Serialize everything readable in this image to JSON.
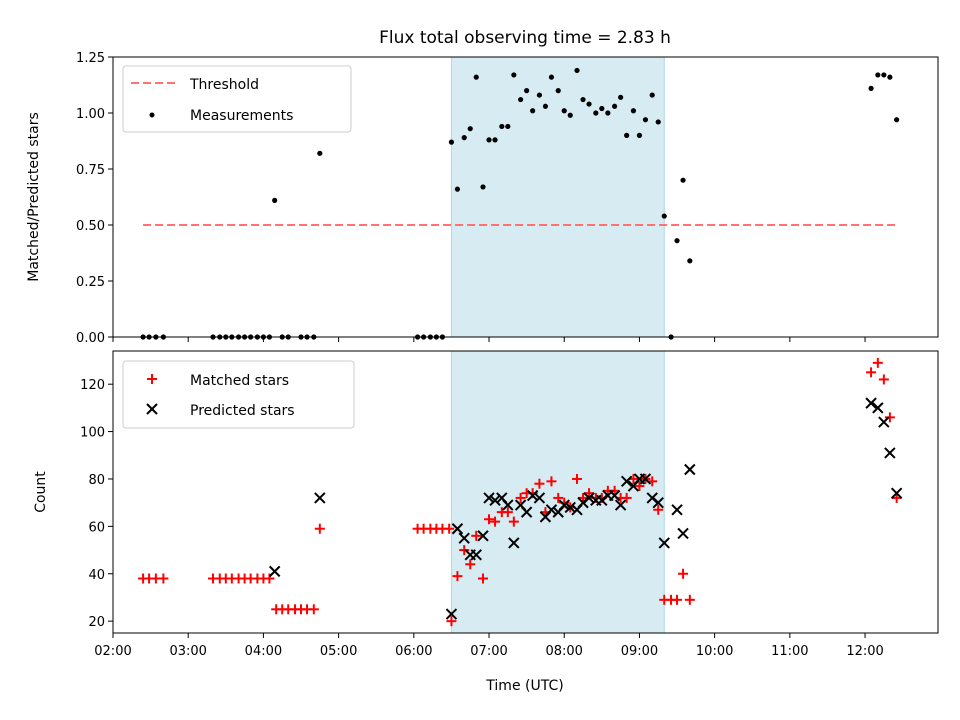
{
  "title": "Flux total observing time = 2.83 h",
  "colors": {
    "threshold": "#ff7070",
    "measurement": "#000000",
    "matched": "#ff0000",
    "predicted": "#000000",
    "shade": "#add8e6"
  },
  "chart_data": [
    {
      "type": "scatter",
      "ylabel": "Matched/Predicted stars",
      "xlim_hours": [
        2.0,
        12.97
      ],
      "ylim": [
        0,
        1.25
      ],
      "yticks": [
        "0.00",
        "0.25",
        "0.50",
        "0.75",
        "1.00",
        "1.25"
      ],
      "yticks_values": [
        0,
        0.25,
        0.5,
        0.75,
        1.0,
        1.25
      ],
      "shaded_region_hours": [
        6.5,
        9.33
      ],
      "legend": {
        "location": "upper-left",
        "entries": [
          "Threshold",
          "Measurements"
        ]
      },
      "series": [
        {
          "name": "Threshold",
          "style": "dashed-line",
          "x_hours": [
            2.4,
            12.45
          ],
          "y": [
            0.5,
            0.5
          ]
        },
        {
          "name": "Measurements",
          "style": "dots",
          "points": [
            [
              2.4,
              0
            ],
            [
              2.48,
              0
            ],
            [
              2.57,
              0
            ],
            [
              2.67,
              0
            ],
            [
              3.33,
              0
            ],
            [
              3.42,
              0
            ],
            [
              3.5,
              0
            ],
            [
              3.58,
              0
            ],
            [
              3.67,
              0
            ],
            [
              3.75,
              0
            ],
            [
              3.83,
              0
            ],
            [
              3.92,
              0
            ],
            [
              4.0,
              0
            ],
            [
              4.08,
              0
            ],
            [
              4.15,
              0.61
            ],
            [
              4.25,
              0
            ],
            [
              4.33,
              0
            ],
            [
              4.5,
              0
            ],
            [
              4.58,
              0
            ],
            [
              4.67,
              0
            ],
            [
              4.75,
              0.82
            ],
            [
              6.05,
              0
            ],
            [
              6.13,
              0
            ],
            [
              6.22,
              0
            ],
            [
              6.3,
              0
            ],
            [
              6.38,
              0
            ],
            [
              6.5,
              0.87
            ],
            [
              6.58,
              0.66
            ],
            [
              6.67,
              0.89
            ],
            [
              6.75,
              0.93
            ],
            [
              6.83,
              1.16
            ],
            [
              6.92,
              0.67
            ],
            [
              7.0,
              0.88
            ],
            [
              7.08,
              0.88
            ],
            [
              7.17,
              0.94
            ],
            [
              7.25,
              0.94
            ],
            [
              7.33,
              1.17
            ],
            [
              7.42,
              1.06
            ],
            [
              7.5,
              1.1
            ],
            [
              7.58,
              1.01
            ],
            [
              7.67,
              1.08
            ],
            [
              7.75,
              1.03
            ],
            [
              7.83,
              1.16
            ],
            [
              7.92,
              1.1
            ],
            [
              8.0,
              1.01
            ],
            [
              8.08,
              0.99
            ],
            [
              8.17,
              1.19
            ],
            [
              8.25,
              1.06
            ],
            [
              8.33,
              1.04
            ],
            [
              8.42,
              1.0
            ],
            [
              8.5,
              1.02
            ],
            [
              8.58,
              1.0
            ],
            [
              8.67,
              1.03
            ],
            [
              8.75,
              1.07
            ],
            [
              8.83,
              0.9
            ],
            [
              8.92,
              1.01
            ],
            [
              9.0,
              0.9
            ],
            [
              9.08,
              0.97
            ],
            [
              9.17,
              1.08
            ],
            [
              9.25,
              0.96
            ],
            [
              9.33,
              0.54
            ],
            [
              9.42,
              0
            ],
            [
              9.5,
              0.43
            ],
            [
              9.58,
              0.7
            ],
            [
              9.67,
              0.34
            ],
            [
              12.08,
              1.11
            ],
            [
              12.17,
              1.17
            ],
            [
              12.25,
              1.17
            ],
            [
              12.33,
              1.16
            ],
            [
              12.42,
              0.97
            ]
          ]
        }
      ]
    },
    {
      "type": "scatter",
      "ylabel": "Count",
      "xlabel": "Time (UTC)",
      "xlim_hours": [
        2.0,
        12.97
      ],
      "ylim": [
        15,
        134
      ],
      "yticks": [
        "20",
        "40",
        "60",
        "80",
        "100",
        "120"
      ],
      "yticks_values": [
        20,
        40,
        60,
        80,
        100,
        120
      ],
      "xticks": [
        "02:00",
        "03:00",
        "04:00",
        "05:00",
        "06:00",
        "07:00",
        "08:00",
        "09:00",
        "10:00",
        "11:00",
        "12:00"
      ],
      "xticks_values": [
        2,
        3,
        4,
        5,
        6,
        7,
        8,
        9,
        10,
        11,
        12
      ],
      "shaded_region_hours": [
        6.5,
        9.33
      ],
      "legend": {
        "location": "upper-left",
        "entries": [
          "Matched stars",
          "Predicted stars"
        ]
      },
      "series": [
        {
          "name": "Matched stars",
          "marker": "plus",
          "points": [
            [
              2.4,
              38
            ],
            [
              2.48,
              38
            ],
            [
              2.57,
              38
            ],
            [
              2.67,
              38
            ],
            [
              3.33,
              38
            ],
            [
              3.42,
              38
            ],
            [
              3.5,
              38
            ],
            [
              3.58,
              38
            ],
            [
              3.67,
              38
            ],
            [
              3.75,
              38
            ],
            [
              3.83,
              38
            ],
            [
              3.92,
              38
            ],
            [
              4.0,
              38
            ],
            [
              4.08,
              38
            ],
            [
              4.17,
              25
            ],
            [
              4.25,
              25
            ],
            [
              4.33,
              25
            ],
            [
              4.42,
              25
            ],
            [
              4.5,
              25
            ],
            [
              4.58,
              25
            ],
            [
              4.67,
              25
            ],
            [
              4.75,
              59
            ],
            [
              6.05,
              59
            ],
            [
              6.13,
              59
            ],
            [
              6.22,
              59
            ],
            [
              6.3,
              59
            ],
            [
              6.38,
              59
            ],
            [
              6.47,
              59
            ],
            [
              6.5,
              20
            ],
            [
              6.58,
              39
            ],
            [
              6.67,
              50
            ],
            [
              6.75,
              44
            ],
            [
              6.83,
              56
            ],
            [
              6.92,
              38
            ],
            [
              7.0,
              63
            ],
            [
              7.08,
              62
            ],
            [
              7.17,
              66
            ],
            [
              7.25,
              66
            ],
            [
              7.33,
              62
            ],
            [
              7.42,
              72
            ],
            [
              7.5,
              74
            ],
            [
              7.58,
              74
            ],
            [
              7.67,
              78
            ],
            [
              7.75,
              66
            ],
            [
              7.83,
              79
            ],
            [
              7.92,
              72
            ],
            [
              8.0,
              70
            ],
            [
              8.08,
              68
            ],
            [
              8.17,
              80
            ],
            [
              8.25,
              72
            ],
            [
              8.33,
              74
            ],
            [
              8.42,
              72
            ],
            [
              8.5,
              72
            ],
            [
              8.58,
              75
            ],
            [
              8.67,
              75
            ],
            [
              8.75,
              72
            ],
            [
              8.83,
              72
            ],
            [
              8.92,
              80
            ],
            [
              9.0,
              77
            ],
            [
              9.08,
              80
            ],
            [
              9.17,
              79
            ],
            [
              9.25,
              67
            ],
            [
              9.33,
              29
            ],
            [
              9.42,
              29
            ],
            [
              9.5,
              29
            ],
            [
              9.58,
              40
            ],
            [
              9.67,
              29
            ],
            [
              12.08,
              125
            ],
            [
              12.17,
              129
            ],
            [
              12.25,
              122
            ],
            [
              12.33,
              106
            ],
            [
              12.42,
              72
            ]
          ]
        },
        {
          "name": "Predicted stars",
          "marker": "x",
          "points": [
            [
              4.15,
              41
            ],
            [
              4.75,
              72
            ],
            [
              6.5,
              23
            ],
            [
              6.58,
              59
            ],
            [
              6.67,
              55
            ],
            [
              6.75,
              48
            ],
            [
              6.83,
              48
            ],
            [
              6.92,
              56
            ],
            [
              7.0,
              72
            ],
            [
              7.08,
              71
            ],
            [
              7.17,
              72
            ],
            [
              7.25,
              69
            ],
            [
              7.33,
              53
            ],
            [
              7.42,
              69
            ],
            [
              7.5,
              66
            ],
            [
              7.58,
              73
            ],
            [
              7.67,
              72
            ],
            [
              7.75,
              64
            ],
            [
              7.83,
              67
            ],
            [
              7.92,
              66
            ],
            [
              8.0,
              69
            ],
            [
              8.08,
              68
            ],
            [
              8.17,
              67
            ],
            [
              8.25,
              70
            ],
            [
              8.33,
              72
            ],
            [
              8.42,
              71
            ],
            [
              8.5,
              71
            ],
            [
              8.58,
              73
            ],
            [
              8.67,
              73
            ],
            [
              8.75,
              69
            ],
            [
              8.83,
              79
            ],
            [
              8.92,
              77
            ],
            [
              9.0,
              80
            ],
            [
              9.08,
              80
            ],
            [
              9.17,
              72
            ],
            [
              9.25,
              70
            ],
            [
              9.33,
              53
            ],
            [
              9.5,
              67
            ],
            [
              9.58,
              57
            ],
            [
              9.67,
              84
            ],
            [
              12.08,
              112
            ],
            [
              12.17,
              110
            ],
            [
              12.25,
              104
            ],
            [
              12.33,
              91
            ],
            [
              12.42,
              74
            ]
          ]
        }
      ]
    }
  ]
}
